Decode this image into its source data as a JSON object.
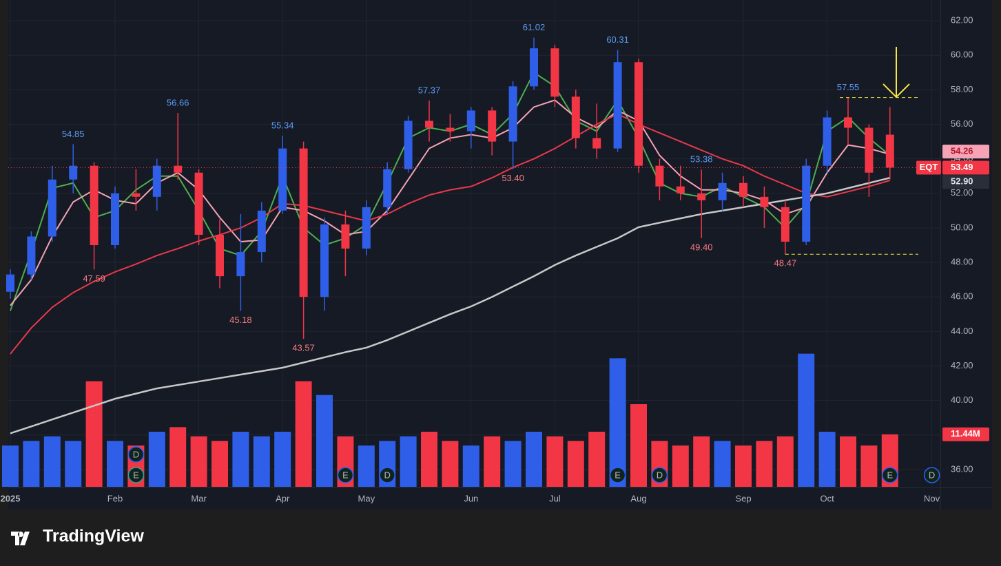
{
  "chart_data": {
    "type": "candlestick",
    "symbol": "EQT",
    "categories": [
      "2025",
      null,
      null,
      null,
      null,
      "Feb",
      null,
      null,
      null,
      "Mar",
      null,
      null,
      null,
      "Apr",
      null,
      null,
      null,
      "May",
      null,
      null,
      null,
      null,
      "Jun",
      null,
      null,
      null,
      "Jul",
      null,
      null,
      null,
      "Aug",
      null,
      null,
      null,
      null,
      "Sep",
      null,
      null,
      null,
      "Oct",
      null,
      null,
      null,
      null,
      "Nov"
    ],
    "open": [
      46.3,
      47.3,
      49.5,
      52.8,
      53.6,
      49.0,
      52.0,
      51.8,
      53.6,
      53.2,
      49.6,
      47.2,
      48.6,
      51.0,
      54.6,
      46.0,
      50.2,
      48.8,
      51.2,
      53.4,
      56.2,
      55.8,
      55.6,
      56.8,
      55.0,
      58.2,
      60.4,
      57.6,
      55.2,
      54.6,
      59.6,
      53.6,
      52.4,
      52.0,
      51.6,
      52.6,
      51.8,
      51.2,
      49.2,
      53.6,
      56.4,
      55.8,
      55.4,
      null,
      null
    ],
    "high": [
      47.6,
      49.8,
      53.6,
      54.85,
      53.8,
      52.4,
      53.4,
      54.0,
      56.66,
      53.4,
      50.5,
      50.8,
      51.5,
      55.34,
      55.0,
      50.6,
      51.0,
      51.6,
      53.8,
      56.5,
      57.37,
      56.6,
      57.0,
      57.0,
      58.5,
      61.02,
      60.6,
      58.0,
      57.2,
      60.31,
      59.8,
      54.0,
      53.6,
      53.38,
      53.2,
      53.0,
      52.4,
      51.6,
      54.0,
      56.8,
      57.55,
      56.0,
      57.0,
      null,
      null
    ],
    "low": [
      45.9,
      47.0,
      49.2,
      52.0,
      47.59,
      48.8,
      51.0,
      51.0,
      52.8,
      49.0,
      46.5,
      45.18,
      48.0,
      50.8,
      43.57,
      45.2,
      47.2,
      48.4,
      50.8,
      53.2,
      55.0,
      55.0,
      54.6,
      54.2,
      53.4,
      58.0,
      57.0,
      54.6,
      54.0,
      54.4,
      53.2,
      51.6,
      51.6,
      49.4,
      51.0,
      51.2,
      50.0,
      48.47,
      49.0,
      53.2,
      54.8,
      51.8,
      52.8,
      null,
      null
    ],
    "close": [
      47.3,
      49.5,
      52.8,
      53.6,
      49.0,
      52.0,
      51.8,
      53.6,
      53.2,
      49.6,
      47.2,
      48.6,
      51.0,
      54.6,
      46.0,
      50.2,
      48.8,
      51.2,
      53.4,
      56.2,
      55.8,
      55.6,
      56.8,
      55.0,
      58.2,
      60.4,
      57.6,
      55.2,
      54.6,
      59.6,
      53.6,
      52.4,
      52.0,
      51.6,
      52.6,
      51.8,
      51.2,
      49.2,
      53.6,
      56.4,
      55.8,
      53.2,
      53.49,
      null,
      null
    ],
    "high_labels": [
      null,
      null,
      null,
      "54.85",
      null,
      null,
      null,
      null,
      "56.66",
      null,
      null,
      null,
      null,
      "55.34",
      null,
      null,
      null,
      null,
      null,
      null,
      "57.37",
      null,
      null,
      null,
      null,
      "61.02",
      null,
      null,
      null,
      "60.31",
      null,
      null,
      null,
      "53.38",
      null,
      null,
      null,
      null,
      null,
      null,
      "57.55",
      null,
      null,
      null,
      null
    ],
    "low_labels": [
      null,
      null,
      null,
      null,
      "47.59",
      null,
      null,
      null,
      null,
      null,
      null,
      "45.18",
      null,
      null,
      "43.57",
      null,
      null,
      null,
      null,
      null,
      null,
      null,
      null,
      null,
      "53.40",
      null,
      null,
      null,
      null,
      null,
      null,
      null,
      null,
      "49.40",
      null,
      null,
      null,
      "48.47",
      null,
      null,
      null,
      null,
      null,
      null,
      null
    ],
    "volume": [
      9,
      10,
      11,
      10,
      23,
      10,
      9,
      12,
      13,
      11,
      10,
      12,
      11,
      12,
      23,
      20,
      11,
      9,
      10,
      11,
      12,
      10,
      9,
      11,
      10,
      12,
      11,
      10,
      12,
      28,
      18,
      10,
      9,
      11,
      10,
      9,
      10,
      11,
      29,
      12,
      11,
      9,
      11.44,
      null,
      null
    ],
    "volume_label": "11.44M",
    "volume_lim": [
      0,
      30
    ],
    "up_color": "#2f5fe8",
    "down_color": "#f23645",
    "moving_averages": [
      {
        "color": "#4caf50",
        "values": [
          45.2,
          48.6,
          52.3,
          52.6,
          50.6,
          51.0,
          52.2,
          53.0,
          53.0,
          51.0,
          48.8,
          48.4,
          49.8,
          53.0,
          50.0,
          49.0,
          49.4,
          50.2,
          52.6,
          55.2,
          55.8,
          55.6,
          56.0,
          55.4,
          56.6,
          59.0,
          58.2,
          56.2,
          55.6,
          57.4,
          55.2,
          52.6,
          52.0,
          51.8,
          52.4,
          51.8,
          51.2,
          50.0,
          51.4,
          55.6,
          56.4,
          55.2,
          54.2,
          null,
          null
        ]
      },
      {
        "color": "#f5a3b5",
        "values": [
          45.5,
          47,
          49.5,
          51.5,
          52.2,
          51.6,
          51.4,
          52.6,
          53.2,
          52.2,
          50.6,
          49.2,
          49.3,
          51.2,
          51.0,
          50.4,
          49.6,
          49.8,
          51.0,
          52.8,
          54.6,
          55.2,
          55.4,
          55.2,
          55.8,
          57.0,
          57.4,
          56.4,
          55.8,
          56.8,
          56.2,
          54.2,
          53.0,
          52.2,
          52.2,
          52.0,
          51.6,
          50.8,
          51.2,
          53.2,
          54.8,
          54.6,
          54.26,
          null,
          null
        ]
      },
      {
        "color": "#e8394a",
        "values": [
          42.7,
          44.2,
          45.4,
          46.25,
          46.9,
          47.45,
          47.9,
          48.4,
          48.8,
          49.24,
          49.6,
          50.0,
          50.6,
          51.4,
          51.3,
          51.0,
          50.7,
          50.4,
          50.8,
          51.4,
          51.9,
          52.2,
          52.4,
          52.9,
          53.5,
          54.0,
          54.6,
          55.3,
          56.0,
          56.6,
          56.0,
          55.5,
          55.0,
          54.5,
          54.0,
          53.6,
          53.0,
          52.5,
          52.0,
          51.8,
          52.1,
          52.4,
          52.75,
          null,
          null
        ]
      },
      {
        "color": "#c8c8c8",
        "values": [
          38.1,
          38.5,
          38.9,
          39.3,
          39.7,
          40.1,
          40.4,
          40.7,
          40.9,
          41.1,
          41.3,
          41.5,
          41.7,
          41.9,
          42.2,
          42.5,
          42.8,
          43.06,
          43.5,
          44.0,
          44.5,
          45.0,
          45.45,
          46.0,
          46.6,
          47.2,
          47.85,
          48.4,
          48.9,
          49.4,
          50.04,
          50.3,
          50.55,
          50.8,
          51.0,
          51.2,
          51.4,
          51.6,
          51.8,
          52.0,
          52.3,
          52.6,
          52.9,
          null,
          null
        ],
        "last_label": "52.90"
      }
    ],
    "ylim": [
      35.0,
      63.2
    ],
    "yticks": [
      {
        "value": 36,
        "label": "36.00"
      },
      {
        "value": 38,
        "label": "38.00"
      },
      {
        "value": 40,
        "label": "40.00"
      },
      {
        "value": 42,
        "label": "42.00"
      },
      {
        "value": 44,
        "label": "44.00"
      },
      {
        "value": 46,
        "label": "46.00"
      },
      {
        "value": 48,
        "label": "48.00"
      },
      {
        "value": 50,
        "label": "50.00"
      },
      {
        "value": 52,
        "label": "52.00"
      },
      {
        "value": 54,
        "label": "54.00"
      },
      {
        "value": 56,
        "label": "56.00"
      },
      {
        "value": 58,
        "label": "58.00"
      },
      {
        "value": 60,
        "label": "60.00"
      },
      {
        "value": 62,
        "label": "62.00"
      }
    ],
    "grid": true,
    "events": [
      null,
      null,
      null,
      null,
      null,
      null,
      [
        "D",
        "E"
      ],
      null,
      null,
      null,
      null,
      null,
      null,
      null,
      null,
      null,
      [
        "E"
      ],
      null,
      [
        "D"
      ],
      null,
      null,
      null,
      null,
      null,
      null,
      null,
      null,
      null,
      null,
      [
        "E"
      ],
      null,
      [
        "D"
      ],
      null,
      null,
      null,
      null,
      null,
      null,
      null,
      null,
      null,
      null,
      [
        "E"
      ],
      null,
      [
        "D"
      ]
    ]
  },
  "branding": "TradingView"
}
